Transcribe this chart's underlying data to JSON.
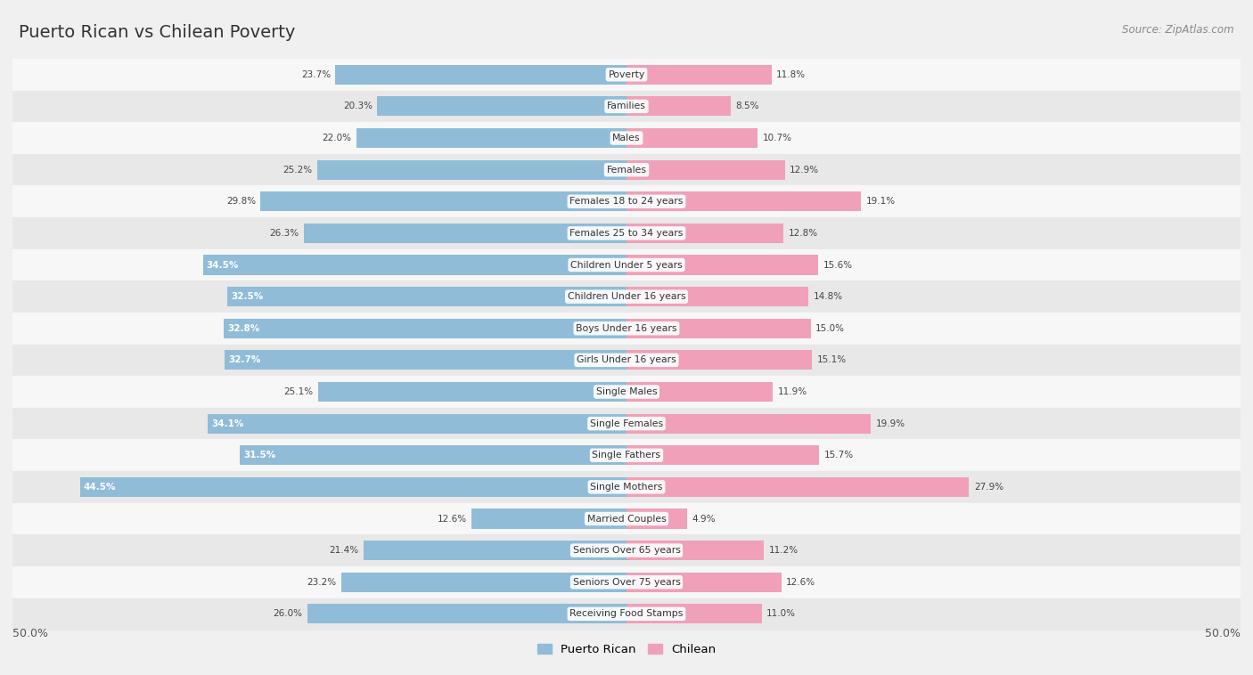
{
  "title": "Puerto Rican vs Chilean Poverty",
  "source": "Source: ZipAtlas.com",
  "categories": [
    "Poverty",
    "Families",
    "Males",
    "Females",
    "Females 18 to 24 years",
    "Females 25 to 34 years",
    "Children Under 5 years",
    "Children Under 16 years",
    "Boys Under 16 years",
    "Girls Under 16 years",
    "Single Males",
    "Single Females",
    "Single Fathers",
    "Single Mothers",
    "Married Couples",
    "Seniors Over 65 years",
    "Seniors Over 75 years",
    "Receiving Food Stamps"
  ],
  "puerto_rican": [
    23.7,
    20.3,
    22.0,
    25.2,
    29.8,
    26.3,
    34.5,
    32.5,
    32.8,
    32.7,
    25.1,
    34.1,
    31.5,
    44.5,
    12.6,
    21.4,
    23.2,
    26.0
  ],
  "chilean": [
    11.8,
    8.5,
    10.7,
    12.9,
    19.1,
    12.8,
    15.6,
    14.8,
    15.0,
    15.1,
    11.9,
    19.9,
    15.7,
    27.9,
    4.9,
    11.2,
    12.6,
    11.0
  ],
  "puerto_rican_color": "#90bcd8",
  "chilean_color": "#f0a0b8",
  "axis_max": 50.0,
  "bg_color": "#f0f0f0",
  "row_bg_light": "#f7f7f7",
  "row_bg_dark": "#e8e8e8",
  "legend_pr": "Puerto Rican",
  "legend_ch": "Chilean",
  "inside_label_threshold": 30.0
}
